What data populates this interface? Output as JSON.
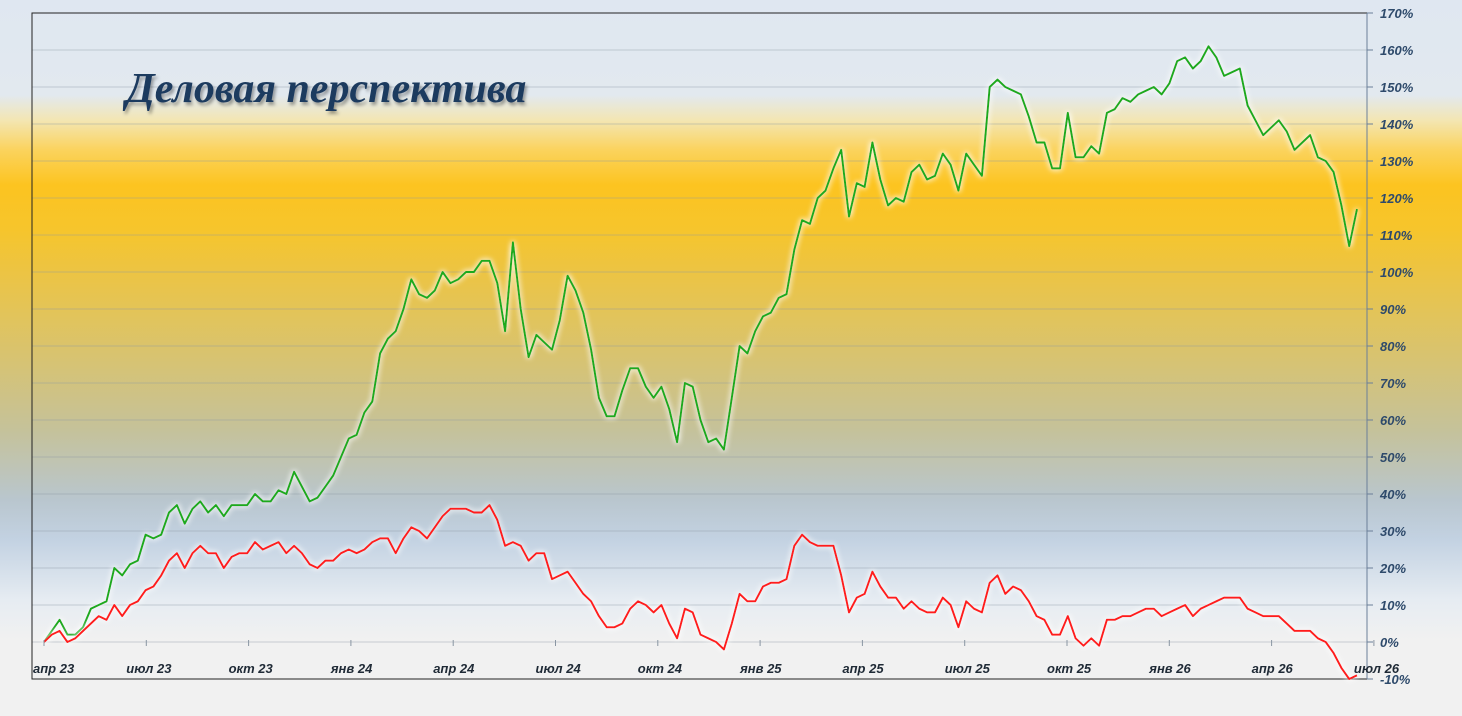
{
  "chart_data": {
    "type": "line",
    "title": "Деловая перспектива",
    "xlabel": "",
    "ylabel": "",
    "ylim": [
      -10,
      170
    ],
    "y_ticks": [
      "170%",
      "160%",
      "150%",
      "140%",
      "130%",
      "120%",
      "110%",
      "100%",
      "90%",
      "80%",
      "70%",
      "60%",
      "50%",
      "40%",
      "30%",
      "20%",
      "10%",
      "0%",
      "-10%"
    ],
    "y_tick_values": [
      170,
      160,
      150,
      140,
      130,
      120,
      110,
      100,
      90,
      80,
      70,
      60,
      50,
      40,
      30,
      20,
      10,
      0,
      -10
    ],
    "x_ticks": [
      "апр 23",
      "июл 23",
      "окт 23",
      "янв 24",
      "апр 24",
      "июл 24",
      "окт 24",
      "янв 25",
      "апр 25",
      "июл 25",
      "окт 25",
      "янв 26",
      "апр 26",
      "июл 26"
    ],
    "grid": true,
    "legend": "none",
    "colors": {
      "series1": "#1faa1f",
      "series2": "#ff1a1a"
    },
    "series": [
      {
        "color": "#1faa1f",
        "values": [
          0,
          3,
          6,
          2,
          2,
          4,
          9,
          10,
          11,
          20,
          18,
          21,
          22,
          29,
          28,
          29,
          35,
          37,
          32,
          36,
          38,
          35,
          37,
          34,
          37,
          37,
          37,
          40,
          38,
          38,
          41,
          40,
          46,
          42,
          38,
          39,
          42,
          45,
          50,
          55,
          56,
          62,
          65,
          78,
          82,
          84,
          90,
          98,
          94,
          93,
          95,
          100,
          97,
          98,
          100,
          100,
          103,
          103,
          97,
          84,
          108,
          90,
          77,
          83,
          81,
          79,
          87,
          99,
          95,
          89,
          79,
          66,
          61,
          61,
          68,
          74,
          74,
          69,
          66,
          69,
          63,
          54,
          70,
          69,
          60,
          54,
          55,
          52,
          66,
          80,
          78,
          84,
          88,
          89,
          93,
          94,
          106,
          114,
          113,
          120,
          122,
          128,
          133,
          115,
          124,
          123,
          135,
          125,
          118,
          120,
          119,
          127,
          129,
          125,
          126,
          132,
          129,
          122,
          132,
          129,
          126,
          150,
          152,
          150,
          149,
          148,
          142,
          135,
          135,
          128,
          128,
          143,
          131,
          131,
          134,
          132,
          143,
          144,
          147,
          146,
          148,
          149,
          150,
          148,
          151,
          157,
          158,
          155,
          157,
          161,
          158,
          153,
          154,
          155,
          145,
          141,
          137,
          139,
          141,
          138,
          133,
          135,
          137,
          131,
          130,
          127,
          118,
          107,
          117
        ]
      },
      {
        "color": "#ff1a1a",
        "values": [
          0,
          2,
          3,
          0,
          1,
          3,
          5,
          7,
          6,
          10,
          7,
          10,
          11,
          14,
          15,
          18,
          22,
          24,
          20,
          24,
          26,
          24,
          24,
          20,
          23,
          24,
          24,
          27,
          25,
          26,
          27,
          24,
          26,
          24,
          21,
          20,
          22,
          22,
          24,
          25,
          24,
          25,
          27,
          28,
          28,
          24,
          28,
          31,
          30,
          28,
          31,
          34,
          36,
          36,
          36,
          35,
          35,
          37,
          33,
          26,
          27,
          26,
          22,
          24,
          24,
          17,
          18,
          19,
          16,
          13,
          11,
          7,
          4,
          4,
          5,
          9,
          11,
          10,
          8,
          10,
          5,
          1,
          9,
          8,
          2,
          1,
          0,
          -2,
          5,
          13,
          11,
          11,
          15,
          16,
          16,
          17,
          26,
          29,
          27,
          26,
          26,
          26,
          18,
          8,
          12,
          13,
          19,
          15,
          12,
          12,
          9,
          11,
          9,
          8,
          8,
          12,
          10,
          4,
          11,
          9,
          8,
          16,
          18,
          13,
          15,
          14,
          11,
          7,
          6,
          2,
          2,
          7,
          1,
          -1,
          1,
          -1,
          6,
          6,
          7,
          7,
          8,
          9,
          9,
          7,
          8,
          9,
          10,
          7,
          9,
          10,
          11,
          12,
          12,
          12,
          9,
          8,
          7,
          7,
          7,
          5,
          3,
          3,
          3,
          1,
          0,
          -3,
          -7,
          -10,
          -9
        ]
      }
    ]
  }
}
